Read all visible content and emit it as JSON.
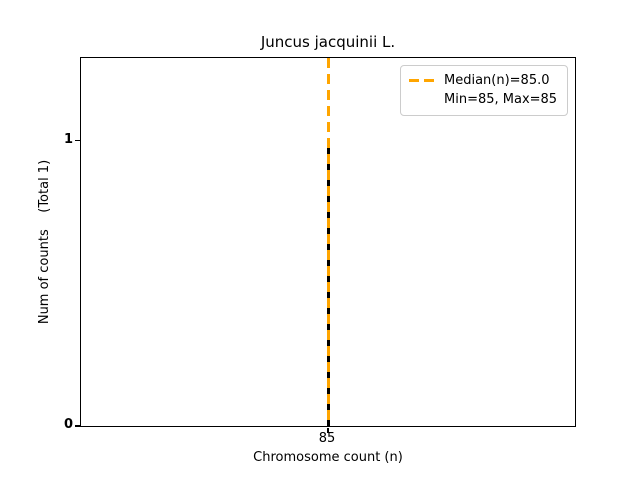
{
  "figure": {
    "background": "#ffffff",
    "text_color": "#000000"
  },
  "chart_data": {
    "type": "bar",
    "title": "Juncus jacquinii L.",
    "xlabel": "Chromosome count (n)",
    "ylabel": "Num of counts    (Total 1)",
    "x": [
      85
    ],
    "values": [
      1
    ],
    "bar_color": "#000000",
    "xlim": [
      84.4,
      85.6
    ],
    "ylim": [
      0,
      1.29
    ],
    "xticks": [
      85
    ],
    "yticks": [
      0,
      1
    ],
    "xtick_labels": [
      "85"
    ],
    "ytick_labels": [
      "0",
      "1"
    ],
    "grid": false,
    "total_counts": 1,
    "median_line": {
      "x": 85,
      "color": "#FFA500",
      "style": "dashed"
    },
    "legend": {
      "position": "upper right",
      "entries": [
        {
          "label": "Median(n)=85.0",
          "sample": "orange-dashed-line"
        },
        {
          "label": "Min=85, Max=85",
          "sample": "none"
        }
      ]
    },
    "stats": {
      "median": 85.0,
      "min": 85,
      "max": 85
    }
  }
}
